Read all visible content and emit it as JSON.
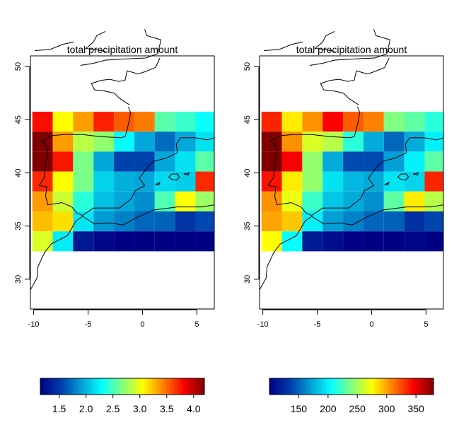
{
  "chart_data": [
    {
      "type": "heatmap",
      "title": "total precipitation amount",
      "x_ticks": [
        -10,
        -5,
        0,
        5
      ],
      "y_ticks": [
        30,
        35,
        40,
        45,
        50
      ],
      "xlim": [
        -10.3,
        6.6
      ],
      "ylim": [
        27.2,
        51.0
      ],
      "grid_lon_edges": [
        -10.125,
        -8.25,
        -6.375,
        -4.5,
        -2.625,
        -0.75,
        1.125,
        3.0,
        4.875,
        6.75
      ],
      "grid_lat_edges": [
        45.75,
        43.875,
        42.0,
        40.125,
        38.25,
        36.375,
        34.5,
        32.625
      ],
      "values": [
        [
          3.78,
          3.05,
          3.35,
          3.72,
          3.55,
          3.45,
          2.55,
          2.45,
          2.3
        ],
        [
          4.2,
          3.35,
          2.85,
          2.72,
          2.28,
          1.95,
          1.72,
          1.95,
          2.18
        ],
        [
          4.2,
          3.75,
          2.65,
          1.95,
          1.55,
          1.55,
          1.95,
          2.18,
          2.55
        ],
        [
          3.7,
          3.05,
          2.65,
          2.12,
          1.98,
          1.95,
          2.15,
          2.1,
          3.7
        ],
        [
          3.35,
          2.9,
          2.4,
          2.05,
          1.95,
          1.85,
          2.52,
          3.05,
          2.75
        ],
        [
          3.25,
          3.15,
          2.2,
          1.9,
          1.8,
          1.7,
          1.68,
          1.48,
          1.58
        ],
        [
          2.95,
          2.22,
          1.3,
          1.2,
          1.15,
          1.12,
          1.12,
          1.15,
          1.12
        ]
      ],
      "colorbar": {
        "min": 1.15,
        "max": 4.2,
        "ticks": [
          1.5,
          2.0,
          2.5,
          3.0,
          3.5,
          4.0
        ],
        "tick_labels": [
          "1.5",
          "2.0",
          "2.5",
          "3.0",
          "3.5",
          "4.0"
        ]
      }
    },
    {
      "type": "heatmap",
      "title": "total precipitation amount",
      "x_ticks": [
        -10,
        -5,
        0,
        5
      ],
      "y_ticks": [
        30,
        35,
        40,
        45,
        50
      ],
      "xlim": [
        -10.3,
        6.6
      ],
      "ylim": [
        27.2,
        51.0
      ],
      "grid_lon_edges": [
        -10.125,
        -8.25,
        -6.375,
        -4.5,
        -2.625,
        -0.75,
        1.125,
        3.0,
        4.875,
        6.75
      ],
      "grid_lat_edges": [
        45.75,
        43.875,
        42.0,
        40.125,
        38.25,
        36.375,
        34.5,
        32.625
      ],
      "values": [
        [
          335,
          280,
          305,
          345,
          320,
          310,
          240,
          230,
          215
        ],
        [
          380,
          305,
          265,
          255,
          215,
          175,
          150,
          175,
          200
        ],
        [
          380,
          345,
          245,
          175,
          140,
          140,
          170,
          200,
          230
        ],
        [
          340,
          280,
          245,
          195,
          180,
          175,
          195,
          190,
          335
        ],
        [
          305,
          270,
          220,
          185,
          175,
          165,
          230,
          280,
          255
        ],
        [
          300,
          290,
          200,
          170,
          160,
          150,
          148,
          128,
          138
        ],
        [
          275,
          205,
          115,
          108,
          102,
          100,
          100,
          103,
          100
        ]
      ],
      "colorbar": {
        "min": 100,
        "max": 380,
        "ticks": [
          150,
          200,
          250,
          300,
          350
        ],
        "tick_labels": [
          "150",
          "200",
          "250",
          "300",
          "350"
        ]
      }
    }
  ]
}
